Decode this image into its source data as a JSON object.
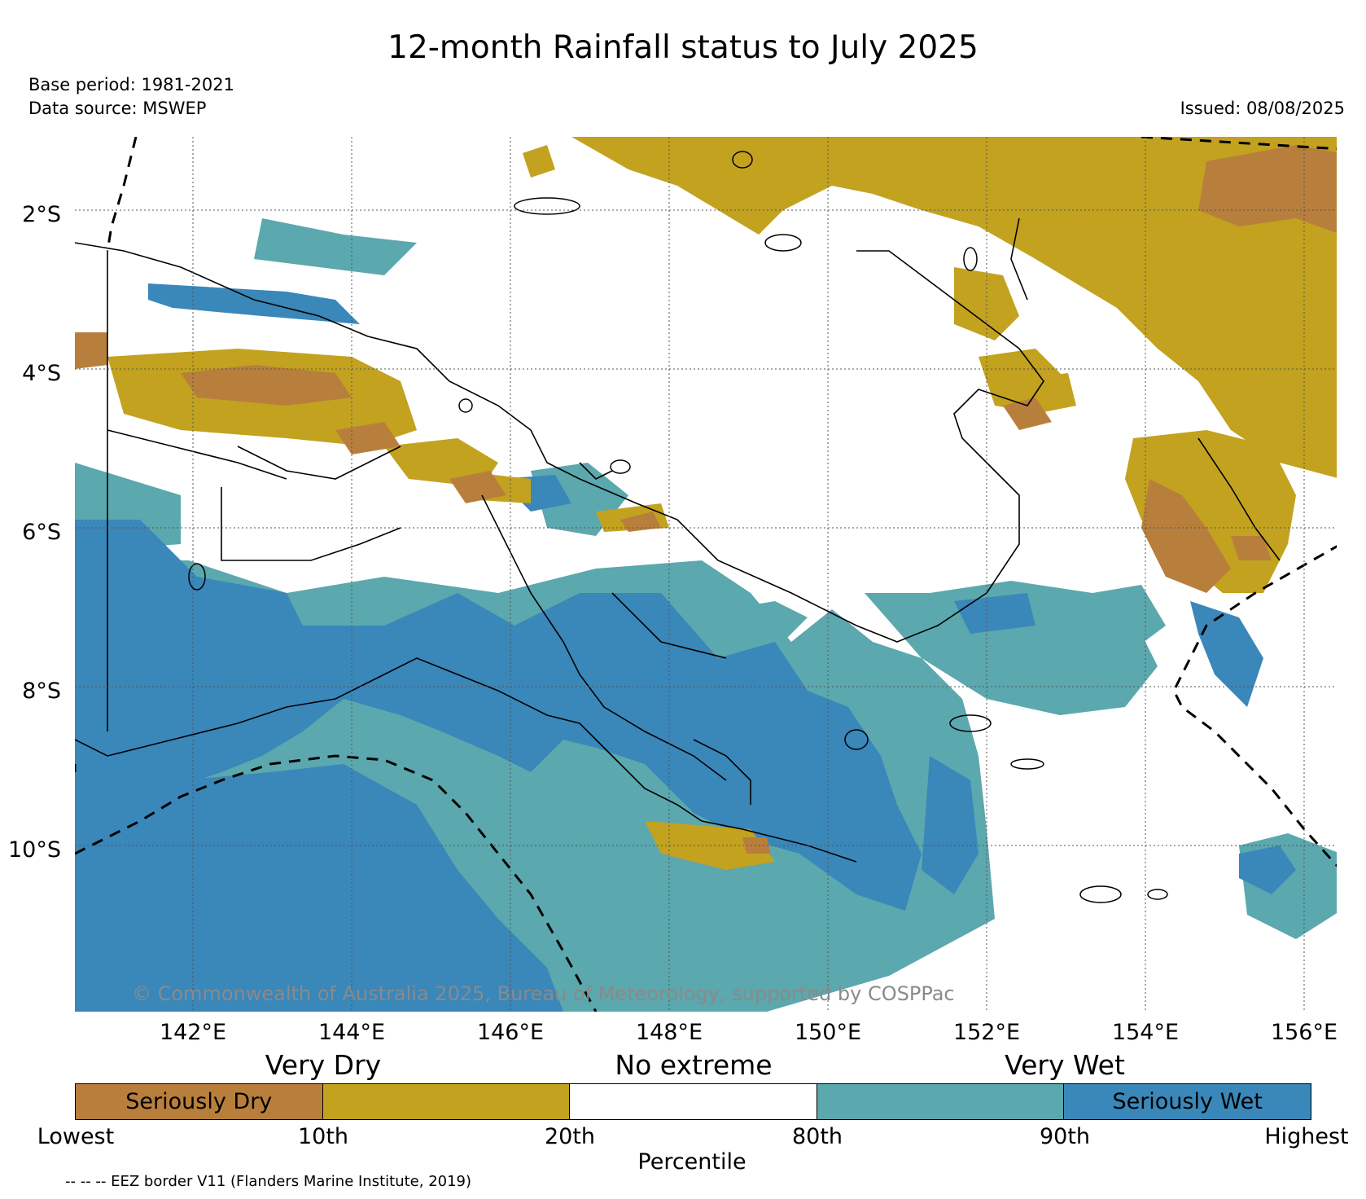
{
  "title": "12-month Rainfall status to July 2025",
  "base_period": "Base period: 1981-2021",
  "data_source": "Data source: MSWEP",
  "issued": "Issued: 08/08/2025",
  "map": {
    "lat_labels": [
      "2°S",
      "4°S",
      "6°S",
      "8°S",
      "10°S"
    ],
    "lon_labels": [
      "142°E",
      "144°E",
      "146°E",
      "148°E",
      "150°E",
      "152°E",
      "154°E",
      "156°E"
    ],
    "copyright": "© Commonwealth of Australia 2025, Bureau of Meteorology, supported by COSPPac"
  },
  "legend": {
    "zone_labels": [
      "Very Dry",
      "No extreme",
      "Very Wet"
    ],
    "segments": [
      {
        "label": "Seriously Dry",
        "color": "#b87f3c"
      },
      {
        "label": "",
        "color": "#c2a21f"
      },
      {
        "label": "",
        "color": "#ffffff"
      },
      {
        "label": "",
        "color": "#5ba8ae"
      },
      {
        "label": "Seriously Wet",
        "color": "#3a87ba"
      }
    ],
    "percentile_labels": [
      "Lowest",
      "10th",
      "20th",
      "80th",
      "90th",
      "Highest"
    ],
    "percentile_title": "Percentile"
  },
  "eez_note": "-- -- -- EEZ border V11 (Flanders Marine Institute, 2019)",
  "colors": {
    "seriously_dry": "#b87f3c",
    "very_dry": "#c2a21f",
    "very_wet": "#5ba8ae",
    "seriously_wet": "#3a87ba"
  }
}
